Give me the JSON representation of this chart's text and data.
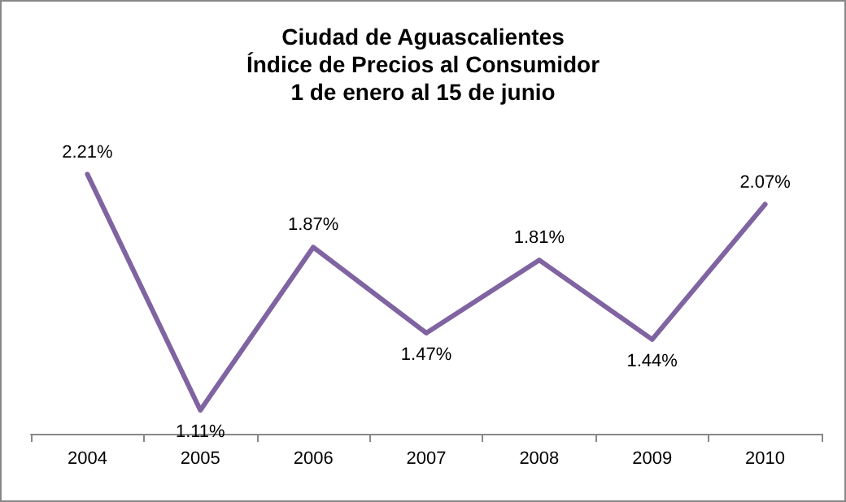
{
  "chart_data": {
    "type": "line",
    "title": "Ciudad de Aguascalientes\nÍndice de Precios al Consumidor\n1 de enero al 15 de junio",
    "categories": [
      "2004",
      "2005",
      "2006",
      "2007",
      "2008",
      "2009",
      "2010"
    ],
    "series": [
      {
        "color": "#8064a2",
        "values": [
          2.21,
          1.11,
          1.87,
          1.47,
          1.81,
          1.44,
          2.07
        ],
        "value_labels": [
          "2.21%",
          "1.11%",
          "1.87%",
          "1.47%",
          "1.81%",
          "1.44%",
          "2.07%"
        ]
      }
    ],
    "data_labels": true,
    "grid": false,
    "marker": "none",
    "line_style": "solid"
  }
}
